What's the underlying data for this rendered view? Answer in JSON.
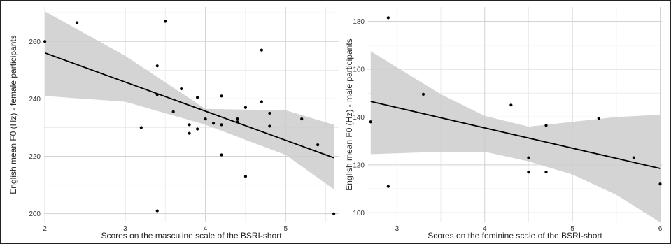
{
  "chart_data": [
    {
      "type": "scatter",
      "title": "",
      "xlabel": "Scores on the masculine scale of the BSRI-short",
      "ylabel": "English mean F0 (Hz) - female participants",
      "xlim": [
        1.99,
        5.66
      ],
      "ylim": [
        197,
        272
      ],
      "xticks": [
        2,
        3,
        4,
        5
      ],
      "yticks": [
        200,
        220,
        240,
        260
      ],
      "grid": true,
      "points": [
        {
          "x": 2.0,
          "y": 260.0
        },
        {
          "x": 2.4,
          "y": 266.5
        },
        {
          "x": 3.2,
          "y": 230.0
        },
        {
          "x": 3.4,
          "y": 251.5
        },
        {
          "x": 3.4,
          "y": 241.5
        },
        {
          "x": 3.4,
          "y": 201.0
        },
        {
          "x": 3.5,
          "y": 267.0
        },
        {
          "x": 3.6,
          "y": 235.5
        },
        {
          "x": 3.7,
          "y": 243.5
        },
        {
          "x": 3.8,
          "y": 231.0
        },
        {
          "x": 3.8,
          "y": 228.0
        },
        {
          "x": 3.9,
          "y": 240.5
        },
        {
          "x": 3.9,
          "y": 229.5
        },
        {
          "x": 4.0,
          "y": 233.0
        },
        {
          "x": 4.1,
          "y": 231.5
        },
        {
          "x": 4.2,
          "y": 241.0
        },
        {
          "x": 4.2,
          "y": 231.0
        },
        {
          "x": 4.2,
          "y": 220.5
        },
        {
          "x": 4.4,
          "y": 233.0
        },
        {
          "x": 4.4,
          "y": 232.0
        },
        {
          "x": 4.5,
          "y": 237.0
        },
        {
          "x": 4.5,
          "y": 213.0
        },
        {
          "x": 4.7,
          "y": 257.0
        },
        {
          "x": 4.7,
          "y": 239.0
        },
        {
          "x": 4.8,
          "y": 235.0
        },
        {
          "x": 4.8,
          "y": 230.5
        },
        {
          "x": 5.2,
          "y": 233.0
        },
        {
          "x": 5.4,
          "y": 224.0
        },
        {
          "x": 5.6,
          "y": 200.0
        }
      ],
      "fit": {
        "x": [
          2.0,
          5.6
        ],
        "y": [
          256.0,
          219.5
        ]
      },
      "ci": {
        "x": [
          2.0,
          3.0,
          4.0,
          5.0,
          5.6
        ],
        "lower": [
          241.0,
          239.0,
          231.0,
          220.5,
          208.5
        ],
        "upper": [
          270.5,
          255.0,
          236.5,
          236.0,
          231.0
        ]
      }
    },
    {
      "type": "scatter",
      "title": "",
      "xlabel": "Scores on the feminine scale of the BSRI-short",
      "ylabel": "English mean F0 (Hz) - male participants",
      "xlim": [
        2.67,
        6.02
      ],
      "ylim": [
        96,
        186
      ],
      "xticks": [
        3,
        4,
        5,
        6
      ],
      "yticks": [
        100,
        120,
        140,
        160,
        180
      ],
      "grid": true,
      "points": [
        {
          "x": 2.7,
          "y": 138.0
        },
        {
          "x": 2.9,
          "y": 181.5
        },
        {
          "x": 2.9,
          "y": 111.0
        },
        {
          "x": 3.3,
          "y": 149.5
        },
        {
          "x": 4.3,
          "y": 145.0
        },
        {
          "x": 4.5,
          "y": 123.0
        },
        {
          "x": 4.5,
          "y": 117.0
        },
        {
          "x": 4.7,
          "y": 136.5
        },
        {
          "x": 4.7,
          "y": 117.0
        },
        {
          "x": 5.3,
          "y": 139.5
        },
        {
          "x": 5.7,
          "y": 123.0
        },
        {
          "x": 6.0,
          "y": 112.0
        }
      ],
      "fit": {
        "x": [
          2.7,
          6.0
        ],
        "y": [
          146.5,
          118.5
        ]
      },
      "ci": {
        "x": [
          2.7,
          3.5,
          4.0,
          4.5,
          5.0,
          5.5,
          6.0
        ],
        "lower": [
          124.5,
          125.5,
          125.5,
          121.5,
          116.0,
          107.5,
          96.0
        ],
        "upper": [
          167.5,
          149.5,
          140.5,
          136.0,
          138.0,
          140.0,
          141.0
        ]
      }
    }
  ]
}
